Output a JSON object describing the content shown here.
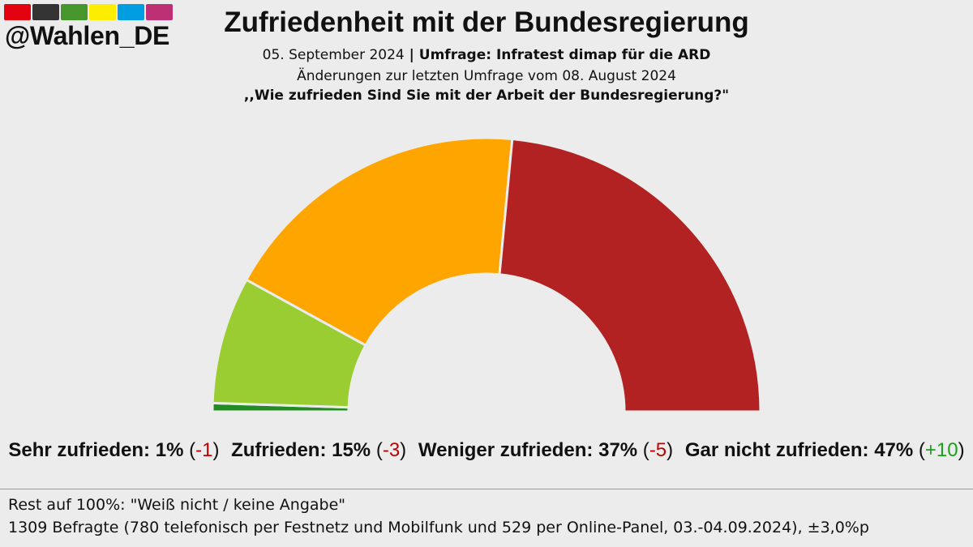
{
  "logo": {
    "colors": [
      "#e3000f",
      "#333333",
      "#46962b",
      "#ffed00",
      "#009ee0",
      "#be3075"
    ],
    "handle": "@Wahlen_DE"
  },
  "header": {
    "title": "Zufriedenheit mit der Bundesregierung",
    "date": "05. September 2024",
    "separator": " | ",
    "poll": "Umfrage: Infratest dimap für die ARD",
    "changes_note": "Änderungen zur letzten Umfrage vom 08. August 2024",
    "question": ",,Wie zufrieden Sind Sie mit der Arbeit der Bundesregierung?\""
  },
  "chart_data": {
    "type": "pie",
    "variant": "semicircle",
    "categories": [
      "Sehr zufrieden",
      "Zufrieden",
      "Weniger zufrieden",
      "Gar nicht zufrieden"
    ],
    "values": [
      1,
      15,
      37,
      47
    ],
    "changes": [
      "-1",
      "-3",
      "-5",
      "+10"
    ],
    "colors": [
      "#228b22",
      "#9acd32",
      "#ffa500",
      "#b22222"
    ],
    "change_colors": [
      "#c00000",
      "#c00000",
      "#c00000",
      "#1aa21a"
    ]
  },
  "legend": {
    "items": [
      {
        "label": "Sehr zufrieden:",
        "value": "1%",
        "change": "-1"
      },
      {
        "label": "Zufrieden:",
        "value": "15%",
        "change": "-3"
      },
      {
        "label": "Weniger zufrieden:",
        "value": "37%",
        "change": "-5"
      },
      {
        "label": "Gar nicht zufrieden:",
        "value": "47%",
        "change": "+10"
      }
    ]
  },
  "footer": {
    "rest_note": "Rest auf 100%: \"Weiß nicht / keine Angabe\"",
    "sample_note": "1309 Befragte (780 telefonisch per Festnetz und Mobilfunk und 529 per Online-Panel, 03.-04.09.2024), ±3,0%p"
  }
}
